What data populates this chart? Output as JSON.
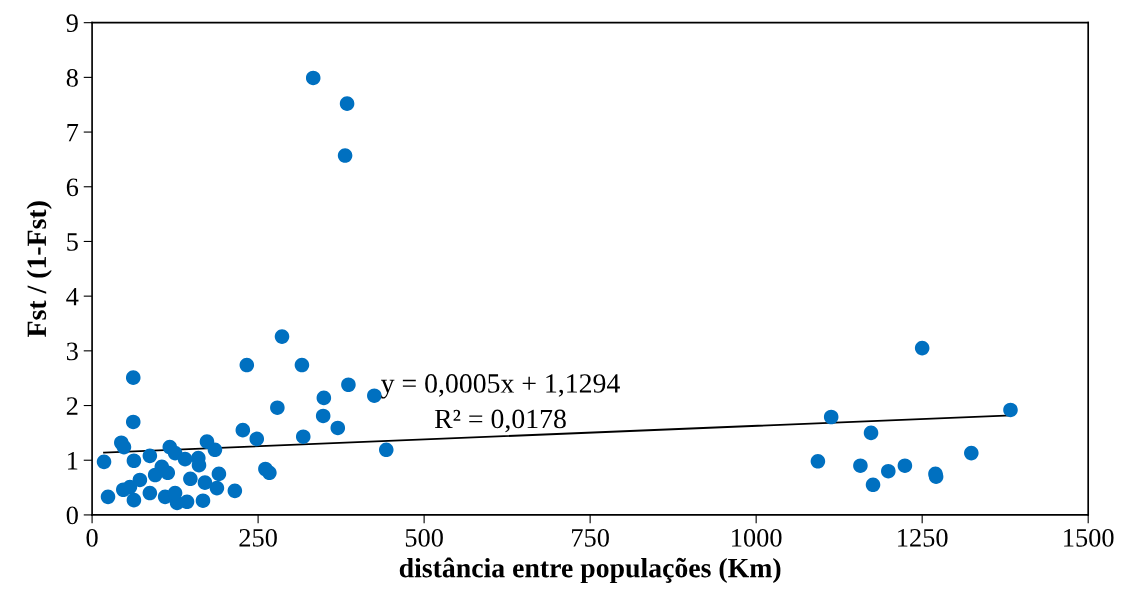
{
  "chart_data": {
    "type": "scatter",
    "xlabel": "distância entre populações (Km)",
    "ylabel": "Fst / (1-Fst)",
    "xlim": [
      0,
      1500
    ],
    "xticks": [
      0,
      250,
      500,
      750,
      1000,
      1250,
      1500
    ],
    "ylim": [
      0,
      9
    ],
    "yticks": [
      0,
      1,
      2,
      3,
      4,
      5,
      6,
      7,
      8,
      9
    ],
    "grid": false,
    "legend": false,
    "series": [
      {
        "marker": "circle",
        "color": "#0070c0",
        "x": [
          18,
          24,
          44,
          48,
          62,
          62,
          63,
          63,
          47,
          87,
          117,
          125,
          140,
          160,
          161,
          173,
          185,
          191,
          170,
          188,
          215,
          167,
          143,
          128,
          148,
          105,
          114,
          95,
          72,
          57,
          87,
          110,
          125,
          227,
          233,
          248,
          261,
          267,
          279,
          286,
          316,
          318,
          348,
          349,
          370,
          386,
          425,
          443,
          333,
          384,
          381,
          1093,
          1113,
          1157,
          1173,
          1176,
          1199,
          1224,
          1250,
          1270,
          1271,
          1324,
          1383
        ],
        "values": [
          0.97,
          0.33,
          1.32,
          1.24,
          2.51,
          1.7,
          0.99,
          0.27,
          0.46,
          1.08,
          1.24,
          1.13,
          1.02,
          1.04,
          0.91,
          1.34,
          1.19,
          0.75,
          0.59,
          0.49,
          0.44,
          0.26,
          0.24,
          0.22,
          0.66,
          0.88,
          0.77,
          0.73,
          0.64,
          0.51,
          0.4,
          0.33,
          0.4,
          1.55,
          2.74,
          1.39,
          0.84,
          0.77,
          1.96,
          3.26,
          2.74,
          1.43,
          1.81,
          2.14,
          1.59,
          2.38,
          2.18,
          1.19,
          7.99,
          7.52,
          6.57,
          0.98,
          1.79,
          0.9,
          1.5,
          0.55,
          0.8,
          0.9,
          3.05,
          0.75,
          0.7,
          1.13,
          1.92
        ]
      },
      {
        "type": "line",
        "color": "#000000",
        "x": [
          18,
          1383
        ],
        "values": [
          1.14,
          1.82
        ]
      }
    ],
    "annotations": [
      "y = 0,0005x + 1,1294",
      "R² = 0,0178"
    ]
  }
}
